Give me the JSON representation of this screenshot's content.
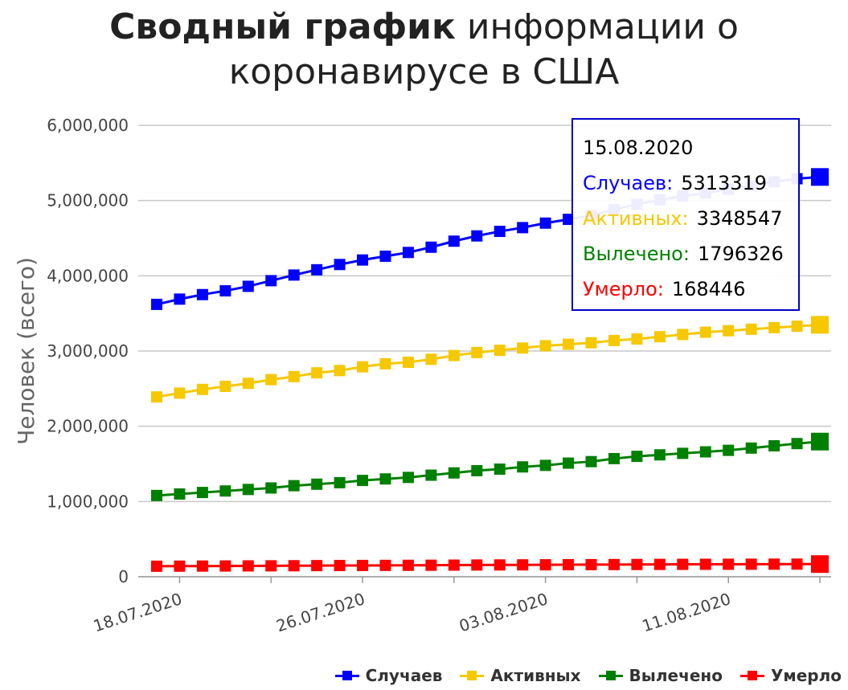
{
  "title_bold": "Сводный график",
  "title_rest": " информации о коронавирусе в США",
  "tooltip": {
    "date": "15.08.2020",
    "rows": [
      {
        "label": "Случаев:",
        "value": "5313319",
        "color": "#0000ff"
      },
      {
        "label": "Активных:",
        "value": "3348547",
        "color": "#f5c800"
      },
      {
        "label": "Вылечено:",
        "value": "1796326",
        "color": "#008000"
      },
      {
        "label": "Умерло:",
        "value": "168446",
        "color": "#ff0000"
      }
    ]
  },
  "chart_data": {
    "type": "line",
    "ylabel": "Человек (всего)",
    "ylim": [
      0,
      6000000
    ],
    "y_ticks": [
      0,
      1000000,
      2000000,
      3000000,
      4000000,
      5000000,
      6000000
    ],
    "y_tick_labels": [
      "0",
      "1,000,000",
      "2,000,000",
      "3,000,000",
      "4,000,000",
      "5,000,000",
      "6,000,000"
    ],
    "x_tick_labels": [
      "18.07.2020",
      "26.07.2020",
      "03.08.2020",
      "11.08.2020"
    ],
    "x": [
      "17.07.2020",
      "18.07.2020",
      "19.07.2020",
      "20.07.2020",
      "21.07.2020",
      "22.07.2020",
      "23.07.2020",
      "24.07.2020",
      "25.07.2020",
      "26.07.2020",
      "27.07.2020",
      "28.07.2020",
      "29.07.2020",
      "30.07.2020",
      "31.07.2020",
      "01.08.2020",
      "02.08.2020",
      "03.08.2020",
      "04.08.2020",
      "05.08.2020",
      "06.08.2020",
      "07.08.2020",
      "08.08.2020",
      "09.08.2020",
      "10.08.2020",
      "11.08.2020",
      "12.08.2020",
      "13.08.2020",
      "14.08.2020",
      "15.08.2020"
    ],
    "legend_position": "bottom-right",
    "grid": true,
    "series": [
      {
        "name": "Случаев",
        "color": "#0000ff",
        "values": [
          3620000,
          3690000,
          3750000,
          3800000,
          3860000,
          3935000,
          4010000,
          4080000,
          4150000,
          4210000,
          4260000,
          4310000,
          4380000,
          4460000,
          4530000,
          4590000,
          4640000,
          4700000,
          4750000,
          4800000,
          4880000,
          4950000,
          5010000,
          5060000,
          5100000,
          5150000,
          5195000,
          5250000,
          5290000,
          5313319
        ]
      },
      {
        "name": "Активных",
        "color": "#f5c800",
        "values": [
          2390000,
          2440000,
          2490000,
          2530000,
          2570000,
          2620000,
          2660000,
          2710000,
          2740000,
          2790000,
          2830000,
          2850000,
          2890000,
          2940000,
          2980000,
          3010000,
          3040000,
          3070000,
          3090000,
          3110000,
          3140000,
          3160000,
          3190000,
          3220000,
          3250000,
          3270000,
          3290000,
          3310000,
          3330000,
          3348547
        ]
      },
      {
        "name": "Вылечено",
        "color": "#008000",
        "values": [
          1080000,
          1100000,
          1120000,
          1140000,
          1160000,
          1180000,
          1210000,
          1230000,
          1250000,
          1280000,
          1300000,
          1320000,
          1350000,
          1380000,
          1410000,
          1430000,
          1460000,
          1480000,
          1510000,
          1530000,
          1570000,
          1600000,
          1620000,
          1640000,
          1660000,
          1680000,
          1710000,
          1740000,
          1770000,
          1796326
        ]
      },
      {
        "name": "Умерло",
        "color": "#ff0000",
        "values": [
          140000,
          141000,
          142000,
          143000,
          144000,
          145000,
          146500,
          148000,
          149000,
          150000,
          151000,
          152000,
          153000,
          154500,
          156000,
          157000,
          158000,
          159000,
          160000,
          161000,
          162000,
          163000,
          164000,
          165000,
          165500,
          166000,
          166800,
          167300,
          167900,
          168446
        ]
      }
    ]
  }
}
